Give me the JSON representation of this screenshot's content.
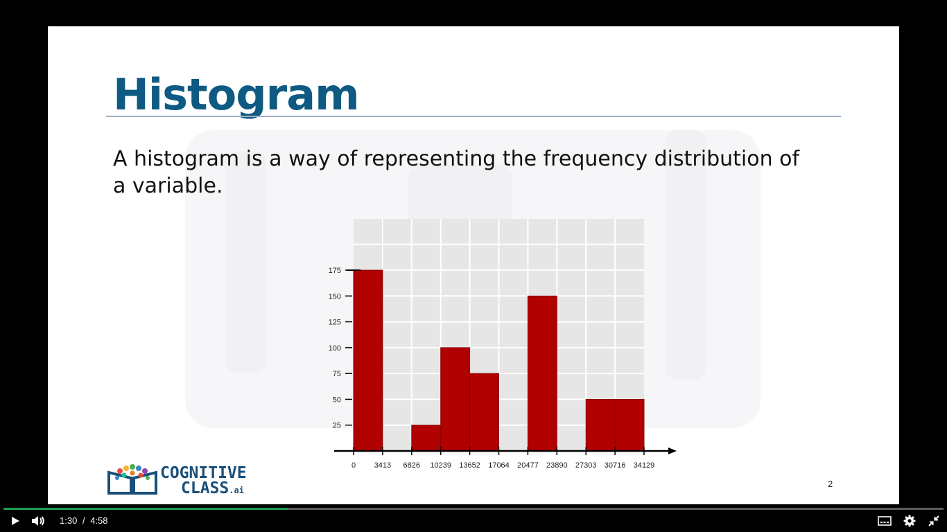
{
  "slide": {
    "title": "Histogram",
    "body": "A histogram is a way of representing the frequency distribution of a variable.",
    "page_number": "2",
    "logo": {
      "line1": "COGNITIVE",
      "line2": "CLASS",
      "suffix": ".ai"
    }
  },
  "chart_data": {
    "type": "bar",
    "title": "",
    "xlabel": "",
    "ylabel": "",
    "x_ticks": [
      "0",
      "3413",
      "6826",
      "10239",
      "13652",
      "17064",
      "20477",
      "23890",
      "27303",
      "30716",
      "34129"
    ],
    "y_ticks": [
      175,
      150,
      125,
      100,
      75,
      50,
      25
    ],
    "bins": [
      {
        "from": 0,
        "to": 3413,
        "value": 175
      },
      {
        "from": 3413,
        "to": 6826,
        "value": 0
      },
      {
        "from": 6826,
        "to": 10239,
        "value": 25
      },
      {
        "from": 10239,
        "to": 13652,
        "value": 100
      },
      {
        "from": 13652,
        "to": 17064,
        "value": 75
      },
      {
        "from": 17064,
        "to": 20477,
        "value": 0
      },
      {
        "from": 20477,
        "to": 23890,
        "value": 150
      },
      {
        "from": 23890,
        "to": 27303,
        "value": 0
      },
      {
        "from": 27303,
        "to": 30716,
        "value": 50
      },
      {
        "from": 30716,
        "to": 34129,
        "value": 50
      }
    ],
    "ylim": [
      0,
      175
    ],
    "grid": true,
    "bar_color": "#b00000",
    "plot_background": "#e6e6e6"
  },
  "player": {
    "current_time": "1:30",
    "separator": "/",
    "duration": "4:58",
    "progress": 0.302,
    "accent_color": "#1f9d55",
    "icons": [
      "play-icon",
      "volume-icon",
      "subtitles-icon",
      "settings-icon",
      "exit-fullscreen-icon"
    ]
  }
}
